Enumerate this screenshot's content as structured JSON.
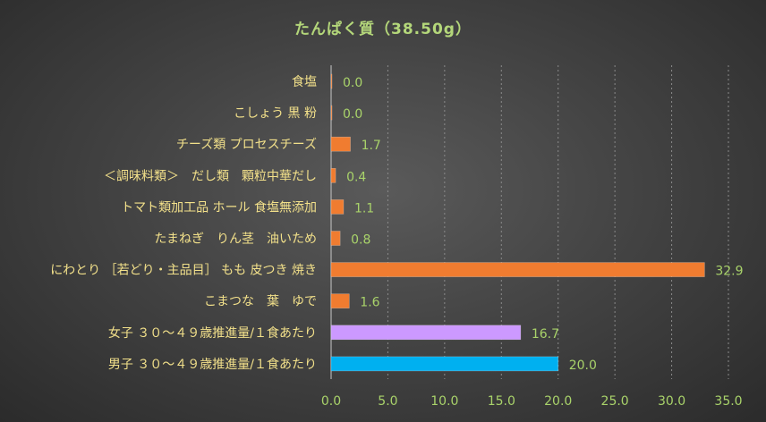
{
  "chart_data": {
    "type": "bar",
    "orientation": "horizontal",
    "title": "たんぱく質（38.50g）",
    "categories": [
      "食塩",
      "こしょう 黒 粉",
      "チーズ類 プロセスチーズ",
      "＜調味料類＞　だし類　顆粒中華だし",
      "トマト類加工品 ホール 食塩無添加",
      "たまねぎ　りん茎　油いため",
      "にわとり ［若どり・主品目］ もも 皮つき 焼き",
      "こまつな　葉　ゆで",
      "女子 ３０～４９歳推進量/１食あたり",
      "男子 ３０～４９歳推進量/１食あたり"
    ],
    "values": [
      0.0,
      0.0,
      1.7,
      0.4,
      1.1,
      0.8,
      32.9,
      1.6,
      16.7,
      20.0
    ],
    "value_labels": [
      "0.0",
      "0.0",
      "1.7",
      "0.4",
      "1.1",
      "0.8",
      "32.9",
      "1.6",
      "16.7",
      "20.0"
    ],
    "bar_colors": [
      "#f07c30",
      "#f07c30",
      "#f07c30",
      "#f07c30",
      "#f07c30",
      "#f07c30",
      "#f07c30",
      "#f07c30",
      "#cc99ff",
      "#00b0f0"
    ],
    "xlim": [
      0,
      35
    ],
    "x_ticks": [
      "0.0",
      "5.0",
      "10.0",
      "15.0",
      "20.0",
      "25.0",
      "30.0",
      "35.0"
    ],
    "xlabel": "",
    "ylabel": "",
    "grid": true,
    "legend": "none"
  },
  "colors": {
    "title": "#b4d77a",
    "category_text": "#f2e08a",
    "value_text": "#a9d36a",
    "background": "#444444"
  }
}
